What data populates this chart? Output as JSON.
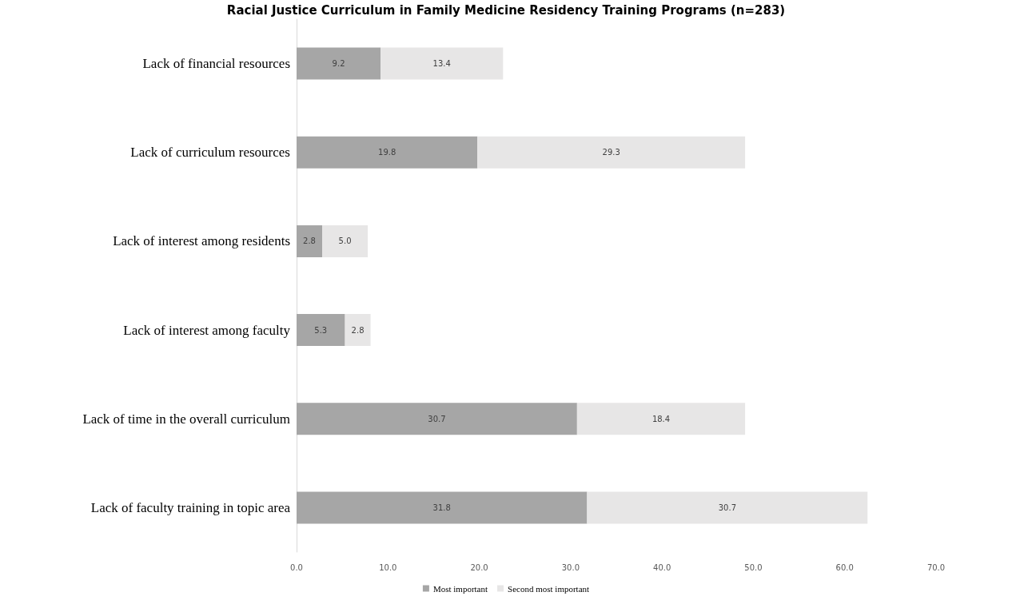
{
  "chart_data": {
    "type": "bar",
    "orientation": "horizontal",
    "stacked": true,
    "title": "Racial Justice Curriculum in Family Medicine Residency Training Programs (n=283)",
    "categories": [
      "Lack of financial resources",
      "Lack of curriculum resources",
      "Lack of interest among residents",
      "Lack of interest among faculty",
      "Lack of time in the overall curriculum",
      "Lack of faculty training in topic area"
    ],
    "series": [
      {
        "name": "Most important",
        "color": "#a6a6a6",
        "values": [
          9.2,
          19.8,
          2.8,
          5.3,
          30.7,
          31.8
        ],
        "value_labels": [
          "9.2",
          "19.8",
          "2.8",
          "5.3",
          "30.7",
          "31.8"
        ]
      },
      {
        "name": "Second most important",
        "color": "#e7e6e6",
        "values": [
          13.4,
          29.3,
          5.0,
          2.8,
          18.4,
          30.7
        ],
        "value_labels": [
          "13.4",
          "29.3",
          "5.0",
          "2.8",
          "18.4",
          "30.7"
        ]
      }
    ],
    "xlim": [
      0,
      70
    ],
    "xticks": [
      {
        "value": 0,
        "label": "0.0"
      },
      {
        "value": 10,
        "label": "10.0"
      },
      {
        "value": 20,
        "label": "20.0"
      },
      {
        "value": 30,
        "label": "30.0"
      },
      {
        "value": 40,
        "label": "40.0"
      },
      {
        "value": 50,
        "label": "50.0"
      },
      {
        "value": 60,
        "label": "60.0"
      },
      {
        "value": 70,
        "label": "70.0"
      }
    ],
    "grid": false,
    "legend": "bottom"
  }
}
